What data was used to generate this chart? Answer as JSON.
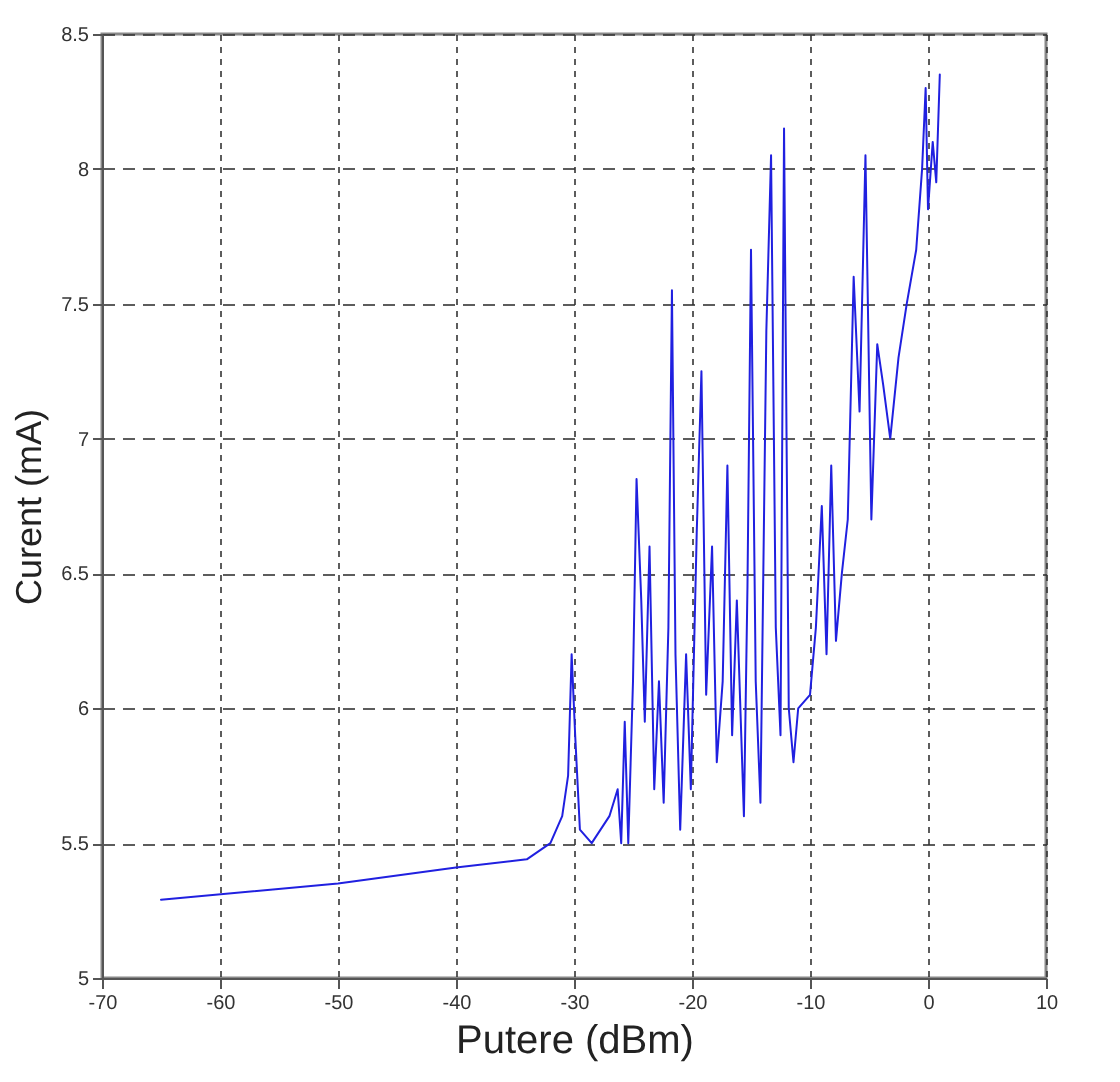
{
  "chart_data": {
    "type": "line",
    "xlabel": "Putere (dBm)",
    "ylabel": "Curent (mA)",
    "xlim": [
      -70,
      10
    ],
    "xticks": [
      -70,
      -60,
      -50,
      -40,
      -30,
      -20,
      -10,
      0,
      10
    ],
    "ylim": [
      5,
      8.5
    ],
    "yticks": [
      5,
      5.5,
      6,
      6.5,
      7,
      7.5,
      8,
      8.5
    ],
    "grid": true,
    "marker": "none",
    "line_style": "solid",
    "series": [
      {
        "color": "#2020e0",
        "x": [
          -65,
          -50,
          -40,
          -34,
          -32,
          -31,
          -30.5,
          -30.2,
          -29.9,
          -29.5,
          -28.5,
          -27,
          -26.3,
          -26,
          -25.7,
          -25.4,
          -25,
          -24.7,
          -24.3,
          -24,
          -23.6,
          -23.2,
          -22.8,
          -22.4,
          -22,
          -21.7,
          -21.4,
          -21,
          -20.5,
          -20.1,
          -19.6,
          -19.2,
          -18.8,
          -18.3,
          -17.9,
          -17.4,
          -17,
          -16.6,
          -16.2,
          -15.6,
          -15.3,
          -15,
          -14.6,
          -14.2,
          -13.7,
          -13.3,
          -12.9,
          -12.5,
          -12.2,
          -11.8,
          -11.4,
          -11,
          -10,
          -9.5,
          -9,
          -8.6,
          -8.2,
          -7.8,
          -7.3,
          -6.8,
          -6.3,
          -5.8,
          -5.3,
          -4.8,
          -4.3,
          -3.8,
          -3.2,
          -2.5,
          -1.8,
          -1,
          -0.5,
          -0.2,
          0,
          0.4,
          0.7,
          1
        ],
        "values": [
          5.29,
          5.35,
          5.41,
          5.44,
          5.5,
          5.6,
          5.75,
          6.2,
          5.9,
          5.55,
          5.5,
          5.6,
          5.7,
          5.5,
          5.95,
          5.5,
          6.1,
          6.85,
          6.4,
          5.95,
          6.6,
          5.7,
          6.1,
          5.65,
          6.3,
          7.55,
          6.2,
          5.55,
          6.2,
          5.7,
          6.65,
          7.25,
          6.05,
          6.6,
          5.8,
          6.1,
          6.9,
          5.9,
          6.4,
          5.6,
          6.45,
          7.7,
          6.1,
          5.65,
          7.4,
          8.05,
          6.3,
          5.9,
          8.15,
          6.0,
          5.8,
          6.0,
          6.05,
          6.3,
          6.75,
          6.2,
          6.9,
          6.25,
          6.5,
          6.7,
          7.6,
          7.1,
          8.05,
          6.7,
          7.35,
          7.2,
          7.0,
          7.3,
          7.5,
          7.7,
          8.0,
          8.3,
          7.85,
          8.1,
          7.95,
          8.35
        ]
      }
    ]
  }
}
